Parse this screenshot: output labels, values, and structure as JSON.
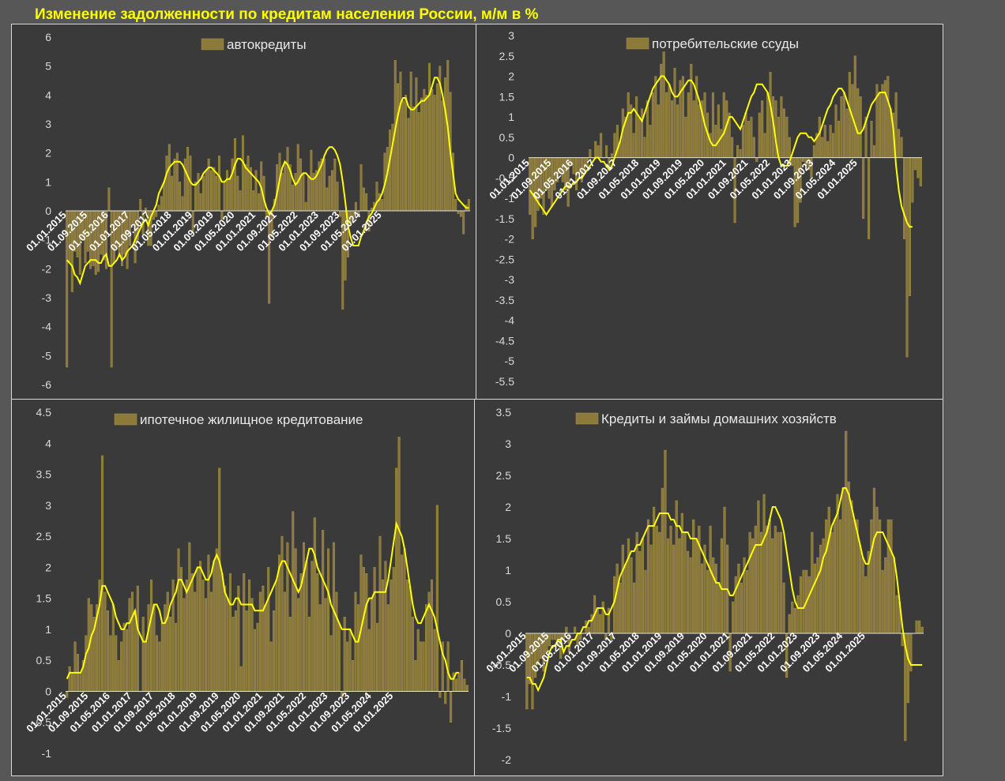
{
  "title": "Изменение задолженности по кредитам населения России, м/м в %",
  "colors": {
    "bar": "#8c7a3a",
    "bar_stroke": "#a8944c",
    "line": "#ffff00",
    "title": "#ffff00",
    "panel_bg": "#3a3a3a"
  },
  "x_tick_labels": [
    "01.01.2015",
    "01.09.2015",
    "01.05.2016",
    "01.01.2017",
    "01.09.2017",
    "01.05.2018",
    "01.01.2019",
    "01.09.2019",
    "01.05.2020",
    "01.01.2021",
    "01.09.2021",
    "01.05.2022",
    "01.01.2023",
    "01.09.2023",
    "01.05.2024",
    "01.01.2025"
  ],
  "chart_data": [
    {
      "type": "bar",
      "legend": "автокредиты",
      "ylim": [
        -6,
        6
      ],
      "yticks": [
        "6",
        "5",
        "4",
        "3",
        "2",
        "1",
        "0",
        "-1",
        "-2",
        "-3",
        "-4",
        "-5",
        "-6"
      ],
      "start_month": "2015-01",
      "bar_values": [
        -5.4,
        -1.8,
        -2.8,
        -1.4,
        -1.6,
        -2.2,
        -1.0,
        -1.8,
        -1.4,
        -2.0,
        -1.9,
        -2.2,
        -2.1,
        -1.5,
        -1.7,
        -2.0,
        0.8,
        -5.4,
        -1.8,
        -1.3,
        -1.6,
        -1.9,
        -1.5,
        -2.0,
        -1.2,
        -0.5,
        -1.8,
        -1.0,
        0.4,
        -0.8,
        0.1,
        -1.2,
        -1.2,
        -0.3,
        -0.2,
        0.2,
        0.5,
        1.0,
        1.9,
        2.3,
        1.2,
        1.8,
        2.0,
        1.0,
        0.5,
        1.8,
        2.2,
        1.9,
        -0.7,
        1.0,
        1.3,
        0.6,
        1.2,
        1.4,
        1.8,
        1.4,
        1.5,
        1.2,
        1.9,
        -0.3,
        1.0,
        1.4,
        1.1,
        1.8,
        2.5,
        1.2,
        0.7,
        2.6,
        1.6,
        1.9,
        1.5,
        0.7,
        1.4,
        0.6,
        1.7,
        1.2,
        -0.2,
        -3.2,
        -0.9,
        0.4,
        1.6,
        2.0,
        1.3,
        1.7,
        2.2,
        1.6,
        0.9,
        1.3,
        2.3,
        1.8,
        1.3,
        0.3,
        1.2,
        2.1,
        1.3,
        1.4,
        1.7,
        1.8,
        1.8,
        0.8,
        1.2,
        1.4,
        1.8,
        1.0,
        -0.2,
        -3.4,
        -2.4,
        -1.6,
        -0.5,
        -0.3,
        0.3,
        -0.2,
        1.6,
        0.8,
        0.6,
        -0.7,
        0.1,
        0.3,
        1.0,
        0.6,
        0.4,
        2.0,
        2.2,
        2.8,
        3.0,
        5.2,
        4.4,
        4.8,
        3.8,
        4.0,
        3.2,
        4.8,
        3.6,
        4.6,
        3.4,
        3.9,
        4.2,
        4.0,
        5.1,
        4.2,
        4.0,
        4.4,
        5.0,
        3.8,
        4.6,
        5.2,
        4.1,
        2.0,
        0.4,
        -0.1,
        -0.2,
        -0.8,
        0.2,
        0.4
      ],
      "line_values": [
        -1.7,
        -1.8,
        -1.9,
        -2.2,
        -2.3,
        -2.5,
        -2.2,
        -1.9,
        -1.8,
        -1.7,
        -1.7,
        -1.7,
        -1.8,
        -1.8,
        -1.6,
        -1.5,
        -1.9,
        -1.9,
        -1.8,
        -1.7,
        -1.5,
        -1.7,
        -1.6,
        -1.4,
        -1.3,
        -1.2,
        -1.0,
        -0.8,
        -0.6,
        -0.4,
        -0.3,
        -0.5,
        -0.2,
        0.0,
        0.2,
        0.6,
        0.8,
        1.0,
        1.3,
        1.5,
        1.6,
        1.7,
        1.7,
        1.7,
        1.6,
        1.4,
        1.2,
        1.0,
        0.9,
        0.9,
        1.0,
        1.1,
        1.3,
        1.4,
        1.5,
        1.5,
        1.4,
        1.3,
        1.2,
        1.0,
        1.0,
        1.1,
        1.1,
        1.3,
        1.6,
        1.8,
        1.8,
        1.7,
        1.5,
        1.4,
        1.3,
        1.2,
        1.1,
        1.0,
        0.8,
        0.4,
        0.1,
        -0.1,
        0.0,
        0.2,
        0.6,
        1.1,
        1.5,
        1.7,
        1.6,
        1.4,
        1.1,
        0.9,
        1.0,
        1.2,
        1.3,
        1.3,
        1.2,
        1.1,
        1.1,
        1.2,
        1.4,
        1.6,
        1.9,
        2.1,
        2.2,
        2.2,
        2.1,
        1.9,
        1.6,
        1.0,
        0.3,
        -0.5,
        -0.9,
        -1.2,
        -1.2,
        -1.2,
        -0.9,
        -0.7,
        -0.4,
        -0.2,
        -0.1,
        0.1,
        0.3,
        0.4,
        0.6,
        0.9,
        1.3,
        1.8,
        2.3,
        2.8,
        3.3,
        3.7,
        3.9,
        3.9,
        3.6,
        3.5,
        3.5,
        3.6,
        3.7,
        3.8,
        3.8,
        3.9,
        4.0,
        4.3,
        4.6,
        4.6,
        4.4,
        4.0,
        3.5,
        2.9,
        2.0,
        1.3,
        0.6,
        0.4,
        0.3,
        0.2,
        0.1,
        0.1
      ]
    },
    {
      "type": "bar",
      "legend": "потребительские ссуды",
      "ylim": [
        -5.5,
        3
      ],
      "yticks": [
        "3",
        "2.5",
        "2",
        "1.5",
        "1",
        "0.5",
        "0",
        "-0.5",
        "-1",
        "-1.5",
        "-2",
        "-2.5",
        "-3",
        "-3.5",
        "-4",
        "-4.5",
        "-5",
        "-5.5"
      ],
      "start_month": "2015-01",
      "bar_values": [
        -1.4,
        -2.0,
        -1.7,
        -1.3,
        -1.0,
        -1.4,
        -0.8,
        -1.0,
        -1.2,
        -0.8,
        -0.6,
        -0.4,
        -0.6,
        -0.8,
        -1.2,
        -0.2,
        -0.4,
        -0.8,
        -0.4,
        -0.6,
        -0.4,
        -0.2,
        0.2,
        0.0,
        0.4,
        0.3,
        0.6,
        0.0,
        0.3,
        -0.2,
        0.1,
        0.6,
        0.8,
        0.4,
        1.2,
        1.0,
        1.6,
        1.3,
        0.6,
        1.5,
        1.0,
        1.2,
        0.5,
        1.4,
        0.8,
        1.6,
        2.0,
        1.3,
        2.3,
        2.6,
        1.6,
        1.8,
        1.4,
        2.2,
        1.3,
        1.9,
        2.0,
        1.0,
        1.6,
        2.3,
        1.4,
        2.0,
        1.3,
        1.4,
        1.6,
        1.1,
        0.6,
        1.6,
        0.8,
        1.3,
        0.7,
        1.6,
        1.4,
        1.1,
        0.5,
        -1.6,
        0.3,
        0.2,
        0.8,
        1.1,
        0.9,
        1.0,
        0.5,
        -0.1,
        1.1,
        1.4,
        0.6,
        1.6,
        2.1,
        1.5,
        1.4,
        1.0,
        1.5,
        1.2,
        1.0,
        0.5,
        -0.2,
        -1.7,
        -1.6,
        -1.1,
        -0.1,
        -0.2,
        -0.3,
        -0.5,
        0.3,
        0.6,
        1.0,
        0.5,
        0.8,
        0.4,
        0.8,
        0.6,
        1.3,
        0.9,
        1.5,
        1.6,
        1.2,
        2.1,
        1.8,
        2.5,
        1.7,
        1.5,
        -1.5,
        1.0,
        -2.0,
        0.9,
        0.3,
        1.8,
        1.6,
        1.8,
        1.9,
        2.0,
        1.2,
        1.1,
        1.6,
        0.7,
        0.5,
        -2.0,
        -4.9,
        -3.4,
        -1.1,
        -0.3,
        -0.5,
        -0.7
      ],
      "line_values": [
        -0.8,
        -0.9,
        -1.0,
        -1.1,
        -1.2,
        -1.3,
        -1.4,
        -1.3,
        -1.2,
        -1.1,
        -1.0,
        -0.9,
        -0.8,
        -0.7,
        -0.7,
        -0.7,
        -0.6,
        -0.6,
        -0.5,
        -0.5,
        -0.4,
        -0.3,
        -0.2,
        -0.1,
        0.0,
        0.0,
        -0.1,
        -0.1,
        -0.2,
        -0.3,
        -0.2,
        0.0,
        0.2,
        0.4,
        0.7,
        0.9,
        1.1,
        1.1,
        1.2,
        1.1,
        1.0,
        0.9,
        1.1,
        1.3,
        1.5,
        1.7,
        1.8,
        1.9,
        2.0,
        2.0,
        1.9,
        1.8,
        1.6,
        1.5,
        1.5,
        1.6,
        1.7,
        1.8,
        1.9,
        1.9,
        1.8,
        1.6,
        1.4,
        1.1,
        0.8,
        0.6,
        0.4,
        0.3,
        0.3,
        0.4,
        0.5,
        0.6,
        0.8,
        1.0,
        1.0,
        0.9,
        0.8,
        0.7,
        0.9,
        1.1,
        1.3,
        1.5,
        1.6,
        1.8,
        1.8,
        1.8,
        1.7,
        1.6,
        1.3,
        0.9,
        0.4,
        0.0,
        -0.2,
        -0.2,
        -0.2,
        -0.1,
        0.1,
        0.3,
        0.5,
        0.6,
        0.6,
        0.6,
        0.5,
        0.5,
        0.4,
        0.5,
        0.6,
        0.8,
        1.0,
        1.2,
        1.3,
        1.5,
        1.6,
        1.7,
        1.7,
        1.6,
        1.4,
        1.2,
        1.0,
        0.8,
        0.6,
        0.6,
        0.7,
        0.9,
        1.1,
        1.3,
        1.4,
        1.5,
        1.6,
        1.6,
        1.6,
        1.4,
        1.2,
        0.7,
        -0.2,
        -0.8,
        -1.2,
        -1.4,
        -1.6,
        -1.7,
        -1.7
      ]
    },
    {
      "type": "bar",
      "legend": "ипотечное жилищное кредитование",
      "ylim": [
        -1,
        4.5
      ],
      "yticks": [
        "4.5",
        "4",
        "3.5",
        "3",
        "2.5",
        "2",
        "1.5",
        "1",
        "0.5",
        "0",
        "-0.5",
        "-1"
      ],
      "start_month": "2015-01",
      "bar_values": [
        -0.1,
        0.4,
        0.3,
        0.8,
        0.6,
        0.3,
        0.5,
        0.9,
        1.5,
        1.4,
        1.2,
        1.4,
        1.8,
        3.8,
        1.6,
        1.3,
        0.9,
        1.4,
        0.9,
        0.5,
        0.8,
        1.1,
        1.0,
        1.5,
        1.6,
        1.3,
        1.7,
        0.0,
        1.2,
        0.8,
        1.4,
        1.8,
        1.4,
        0.9,
        0.8,
        1.1,
        1.4,
        1.6,
        1.2,
        1.8,
        1.1,
        2.3,
        2.0,
        1.5,
        1.8,
        2.4,
        1.9,
        1.6,
        2.0,
        2.1,
        1.8,
        1.5,
        2.2,
        1.6,
        2.1,
        2.3,
        3.6,
        1.9,
        1.7,
        1.5,
        1.9,
        1.2,
        1.3,
        1.7,
        0.4,
        1.9,
        1.3,
        1.8,
        1.5,
        1.0,
        1.1,
        1.6,
        1.7,
        1.4,
        2.0,
        0.8,
        1.3,
        1.8,
        2.2,
        2.5,
        1.6,
        2.4,
        1.2,
        2.9,
        2.3,
        1.5,
        1.9,
        2.4,
        2.1,
        1.2,
        2.1,
        2.8,
        1.9,
        1.4,
        2.6,
        1.5,
        2.3,
        0.9,
        2.4,
        1.6,
        1.1,
        -0.1,
        1.2,
        0.8,
        1.0,
        0.5,
        1.6,
        1.4,
        2.2,
        2.0,
        1.9,
        1.0,
        1.5,
        2.0,
        1.1,
        2.5,
        1.8,
        2.1,
        1.4,
        1.8,
        2.0,
        3.6,
        4.1,
        2.2,
        2.3,
        1.8,
        1.7,
        1.2,
        0.5,
        1.0,
        0.8,
        0.8,
        1.4,
        1.6,
        1.8,
        1.0,
        3.0,
        -0.1,
        0.8,
        -0.2,
        0.8,
        -0.5,
        0.3,
        0.2,
        0.3,
        0.5,
        0.2,
        0.1
      ],
      "line_values": [
        0.2,
        0.3,
        0.3,
        0.3,
        0.3,
        0.3,
        0.4,
        0.6,
        0.7,
        0.9,
        1.0,
        1.2,
        1.4,
        1.7,
        1.7,
        1.6,
        1.5,
        1.4,
        1.2,
        1.1,
        1.0,
        1.0,
        1.1,
        1.1,
        1.2,
        1.3,
        1.0,
        0.9,
        0.8,
        0.8,
        1.0,
        1.2,
        1.4,
        1.4,
        1.3,
        1.1,
        1.1,
        1.2,
        1.4,
        1.5,
        1.6,
        1.8,
        1.8,
        1.7,
        1.6,
        1.7,
        1.8,
        1.9,
        2.0,
        2.0,
        1.9,
        1.8,
        1.8,
        1.9,
        2.1,
        2.2,
        2.1,
        1.9,
        1.6,
        1.5,
        1.4,
        1.4,
        1.5,
        1.5,
        1.4,
        1.4,
        1.4,
        1.4,
        1.4,
        1.3,
        1.3,
        1.3,
        1.3,
        1.4,
        1.5,
        1.6,
        1.7,
        1.8,
        2.0,
        2.1,
        2.1,
        2.0,
        1.9,
        1.8,
        1.7,
        1.6,
        1.7,
        1.9,
        2.1,
        2.3,
        2.3,
        2.2,
        2.0,
        1.9,
        1.8,
        1.7,
        1.6,
        1.4,
        1.3,
        1.2,
        1.1,
        1.0,
        1.0,
        1.0,
        1.0,
        0.9,
        0.8,
        0.8,
        1.0,
        1.2,
        1.4,
        1.5,
        1.5,
        1.6,
        1.6,
        1.6,
        1.6,
        1.6,
        1.8,
        2.1,
        2.4,
        2.7,
        2.6,
        2.5,
        2.3,
        2.0,
        1.7,
        1.4,
        1.2,
        1.1,
        1.1,
        1.2,
        1.3,
        1.4,
        1.3,
        1.2,
        1.0,
        0.8,
        0.6,
        0.5,
        0.3,
        0.2,
        0.2,
        0.3,
        0.3
      ],
      "bar_color_note": ""
    },
    {
      "type": "bar",
      "legend": "Кредиты и займы домашних хозяйств",
      "ylim": [
        -2,
        3.5
      ],
      "yticks": [
        "3.5",
        "3",
        "2.5",
        "2",
        "1.5",
        "1",
        "0.5",
        "0",
        "-0.5",
        "-1",
        "-1.5",
        "-2"
      ],
      "start_month": "2015-01",
      "bar_values": [
        -1.2,
        -0.8,
        -1.2,
        -0.7,
        -0.5,
        -0.4,
        -0.6,
        -0.3,
        -0.2,
        -0.1,
        -0.1,
        -0.2,
        -0.4,
        -0.1,
        0.1,
        -0.3,
        0.0,
        0.1,
        -0.2,
        -0.1,
        0.0,
        0.2,
        0.1,
        0.3,
        0.6,
        0.4,
        0.3,
        0.5,
        -0.1,
        0.4,
        -0.1,
        0.9,
        1.1,
        0.8,
        1.4,
        1.1,
        1.5,
        1.2,
        0.8,
        1.6,
        1.3,
        1.5,
        1.0,
        1.8,
        1.4,
        2.0,
        1.7,
        1.6,
        2.3,
        2.9,
        1.5,
        1.7,
        1.4,
        2.1,
        1.5,
        1.9,
        1.6,
        1.3,
        1.2,
        1.8,
        1.5,
        1.7,
        1.1,
        1.4,
        1.0,
        1.7,
        1.2,
        1.1,
        0.8,
        1.5,
        2.0,
        1.4,
        -0.6,
        0.5,
        0.9,
        1.1,
        0.8,
        1.2,
        1.0,
        1.6,
        1.5,
        1.7,
        2.1,
        1.6,
        2.2,
        1.7,
        1.8,
        1.5,
        1.7,
        1.6,
        1.6,
        0.8,
        -0.7,
        0.3,
        0.5,
        0.4,
        0.6,
        0.9,
        1.0,
        1.0,
        0.9,
        1.6,
        1.1,
        1.2,
        1.4,
        1.5,
        1.8,
        2.0,
        1.6,
        1.8,
        2.2,
        1.8,
        2.3,
        3.2,
        2.4,
        2.1,
        1.8,
        1.8,
        1.4,
        1.2,
        0.9,
        1.3,
        1.8,
        2.3,
        2.0,
        1.8,
        1.0,
        1.2,
        1.8,
        1.8,
        1.2,
        0.6,
        0.5,
        -0.2,
        -1.7,
        -1.1,
        -0.6,
        0.0,
        0.2,
        0.2,
        0.1
      ],
      "line_values": [
        -0.7,
        -0.7,
        -0.8,
        -0.8,
        -0.9,
        -0.8,
        -0.7,
        -0.5,
        -0.3,
        -0.2,
        -0.2,
        -0.1,
        -0.1,
        -0.3,
        -0.2,
        -0.2,
        -0.1,
        -0.1,
        0.0,
        0.0,
        0.1,
        0.1,
        0.2,
        0.2,
        0.3,
        0.4,
        0.4,
        0.4,
        0.3,
        0.3,
        0.4,
        0.5,
        0.7,
        0.9,
        1.0,
        1.1,
        1.2,
        1.3,
        1.3,
        1.4,
        1.4,
        1.5,
        1.6,
        1.7,
        1.7,
        1.7,
        1.8,
        1.9,
        1.9,
        1.9,
        1.9,
        1.8,
        1.8,
        1.7,
        1.7,
        1.6,
        1.6,
        1.6,
        1.5,
        1.5,
        1.5,
        1.4,
        1.3,
        1.2,
        1.1,
        1.0,
        0.9,
        0.8,
        0.8,
        0.7,
        0.7,
        0.7,
        0.6,
        0.6,
        0.7,
        0.8,
        0.9,
        1.0,
        1.1,
        1.2,
        1.3,
        1.4,
        1.4,
        1.4,
        1.5,
        1.6,
        1.8,
        2.0,
        2.0,
        1.9,
        1.8,
        1.6,
        1.3,
        1.0,
        0.7,
        0.5,
        0.4,
        0.4,
        0.4,
        0.5,
        0.6,
        0.7,
        0.8,
        0.9,
        1.0,
        1.2,
        1.3,
        1.5,
        1.7,
        1.8,
        1.9,
        2.1,
        2.3,
        2.3,
        2.2,
        2.0,
        1.8,
        1.6,
        1.4,
        1.2,
        1.1,
        1.1,
        1.3,
        1.5,
        1.6,
        1.6,
        1.6,
        1.5,
        1.4,
        1.3,
        1.2,
        0.9,
        0.5,
        0.1,
        -0.2,
        -0.4,
        -0.5,
        -0.5,
        -0.5,
        -0.5,
        -0.5
      ]
    }
  ]
}
